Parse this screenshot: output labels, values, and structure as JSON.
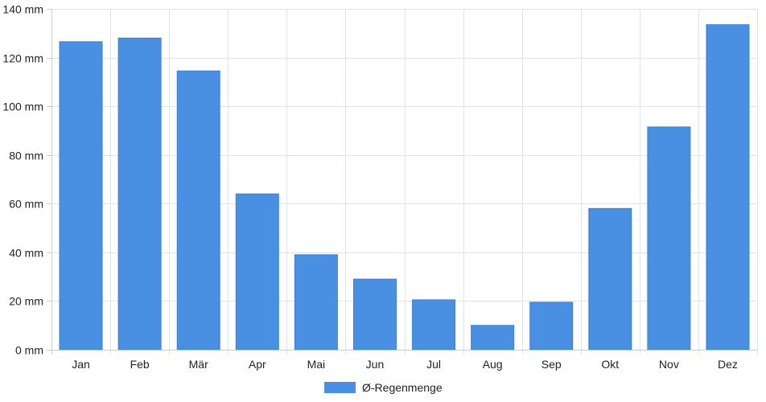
{
  "chart_data": {
    "type": "bar",
    "categories": [
      "Jan",
      "Feb",
      "Mär",
      "Apr",
      "Mai",
      "Jun",
      "Jul",
      "Aug",
      "Sep",
      "Okt",
      "Nov",
      "Dez"
    ],
    "series": [
      {
        "name": "Ø-Regenmenge",
        "values": [
          126.5,
          128,
          114.5,
          64,
          39,
          29,
          20.5,
          10,
          19.5,
          58,
          91.5,
          133.5
        ],
        "color": "#4a90e2"
      }
    ],
    "y_tick_labels": [
      "0 mm",
      "20 mm",
      "40 mm",
      "60 mm",
      "80 mm",
      "100 mm",
      "120 mm",
      "140 mm"
    ],
    "y_ticks": [
      0,
      20,
      40,
      60,
      80,
      100,
      120,
      140
    ],
    "ylim": [
      0,
      140
    ],
    "grid": true,
    "legend_position": "bottom"
  }
}
